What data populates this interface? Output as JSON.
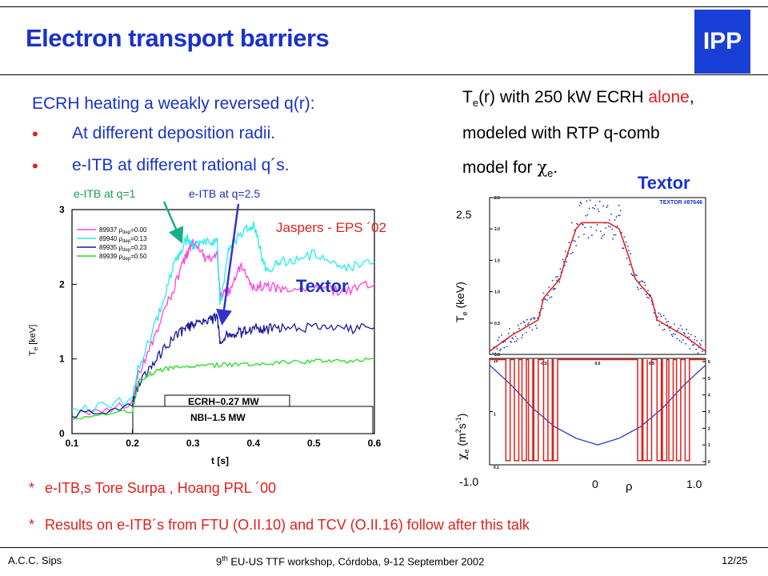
{
  "header": {
    "title": "Electron transport barriers",
    "logo_text": "IPP"
  },
  "left": {
    "lead": "ECRH heating a weakly reversed q(r):",
    "bullets": [
      "At different deposition radii.",
      "e-ITB at different rational q´s."
    ],
    "label_q1": "e-ITB at q=1",
    "label_q25": "e-ITB at q=2.5"
  },
  "right": {
    "line1_pre": "T",
    "line1_sub": "e",
    "line1_mid": "(r) with 250 kW ECRH ",
    "line1_alone": "alone",
    "line1_end": ",",
    "line2": "modeled with RTP q-comb",
    "line3_pre": "model for ",
    "line3_chi": "χ",
    "line3_sub": "e",
    "line3_end": ".",
    "textor_label": "Textor"
  },
  "annotations": {
    "jaspers": "Jaspers - EPS ´02",
    "textor_inset": "Textor"
  },
  "refs": {
    "ref1_star": "*",
    "ref1": "e-ITB,s Tore Surpa , Hoang PRL ´00",
    "ref2_star": "*",
    "ref2": "Results on e-ITB´s from FTU (O.II.10) and TCV (O.II.16) follow after this talk"
  },
  "footer": {
    "left": "A.C.C. Sips",
    "center_pre": "9",
    "center_sup": "th",
    "center_post": " EU-US TTF workshop, Córdoba, 9-12 September 2002",
    "right": "12/25"
  },
  "chart_data": [
    {
      "type": "line",
      "xlabel": "t [s]",
      "ylabel": "Te [keV]",
      "ylabel_main": "T",
      "ylabel_sub": "e",
      "ylabel_unit": " [keV]",
      "xlim": [
        0.1,
        0.6
      ],
      "ylim": [
        0,
        3
      ],
      "xticks": [
        "0.1",
        "0.2",
        "0.3",
        "0.4",
        "0.5",
        "0.6"
      ],
      "yticks": [
        "0",
        "1",
        "2",
        "3"
      ],
      "ecrh_label": "ECRH–0.27 MW",
      "nbi_label": "NBI–1.5 MW",
      "series": [
        {
          "name": "89937 ρdep=0.00",
          "shot": "89937",
          "rho_label": "ρ",
          "rho_sub": "dep",
          "rho_val": "=0.00",
          "color": "#ff44dd",
          "x": [
            0.1,
            0.2,
            0.21,
            0.24,
            0.27,
            0.29,
            0.3,
            0.32,
            0.34,
            0.345,
            0.36,
            0.38,
            0.4,
            0.42,
            0.45,
            0.5,
            0.55,
            0.6
          ],
          "y": [
            0.25,
            0.42,
            0.8,
            1.35,
            2.0,
            2.4,
            2.55,
            2.35,
            2.4,
            1.85,
            1.9,
            2.25,
            1.95,
            2.0,
            1.9,
            1.95,
            1.9,
            2.0
          ]
        },
        {
          "name": "89940 ρdep=0.13",
          "shot": "89940",
          "rho_label": "ρ",
          "rho_sub": "dep",
          "rho_val": "=0.13",
          "color": "#22eeee",
          "x": [
            0.1,
            0.2,
            0.21,
            0.24,
            0.27,
            0.29,
            0.3,
            0.32,
            0.34,
            0.345,
            0.36,
            0.38,
            0.4,
            0.42,
            0.45,
            0.5,
            0.55,
            0.6
          ],
          "y": [
            0.28,
            0.45,
            0.9,
            1.5,
            2.3,
            2.6,
            2.5,
            2.55,
            2.6,
            1.7,
            2.5,
            2.7,
            2.8,
            2.2,
            2.3,
            2.4,
            2.2,
            2.3
          ]
        },
        {
          "name": "89935 ρdep=0.23",
          "shot": "89935",
          "rho_label": "ρ",
          "rho_sub": "dep",
          "rho_val": "=0.23",
          "color": "#1a1a9c",
          "x": [
            0.1,
            0.2,
            0.21,
            0.24,
            0.27,
            0.29,
            0.3,
            0.32,
            0.34,
            0.345,
            0.36,
            0.38,
            0.4,
            0.42,
            0.45,
            0.5,
            0.55,
            0.6
          ],
          "y": [
            0.22,
            0.38,
            0.65,
            1.0,
            1.3,
            1.42,
            1.45,
            1.5,
            1.55,
            1.2,
            1.35,
            1.35,
            1.42,
            1.4,
            1.4,
            1.42,
            1.4,
            1.42
          ]
        },
        {
          "name": "89939 ρdep=0.50",
          "shot": "89939",
          "rho_label": "ρ",
          "rho_sub": "dep",
          "rho_val": "=0.50",
          "color": "#22dd22",
          "x": [
            0.1,
            0.2,
            0.21,
            0.24,
            0.27,
            0.3,
            0.35,
            0.4,
            0.45,
            0.5,
            0.55,
            0.6
          ],
          "y": [
            0.2,
            0.3,
            0.7,
            0.85,
            0.88,
            0.9,
            0.92,
            0.92,
            0.95,
            0.97,
            0.97,
            1.0
          ]
        }
      ]
    },
    {
      "type": "scatter",
      "title": "TEXTOR #87646",
      "ylabel": "Te (keV)",
      "ylabel_main": "T",
      "ylabel_sub": "e",
      "ylabel_unit": " (keV)",
      "ytick_label": "2.5",
      "xlim": [
        -1.0,
        1.0
      ],
      "ylim": [
        0,
        2.5
      ],
      "yticks": [
        "0.0",
        "0.5",
        "1.0",
        "1.5",
        "2.0",
        "2.5"
      ],
      "model_color": "#e0201a",
      "data_color": "#1a32c8",
      "model": {
        "rho": [
          -1.0,
          -0.8,
          -0.55,
          -0.5,
          -0.35,
          -0.3,
          -0.2,
          -0.15,
          0.1,
          0.15,
          0.2,
          0.3,
          0.35,
          0.5,
          0.55,
          0.8,
          1.0
        ],
        "te": [
          0.05,
          0.3,
          0.55,
          0.9,
          1.2,
          1.5,
          2.0,
          2.1,
          2.1,
          2.05,
          2.0,
          1.5,
          1.2,
          0.9,
          0.55,
          0.3,
          0.05
        ]
      },
      "measured_rho_range": [
        -0.97,
        0.97
      ]
    },
    {
      "type": "line",
      "ylabel": "χe (m2s-1)",
      "ylabel_chi": "χ",
      "ylabel_sub": "e",
      "ylabel_unit_open": " (m",
      "ylabel_sup1": "2",
      "ylabel_unit_mid": "s",
      "ylabel_sup2": "-1",
      "ylabel_unit_close": ")",
      "xlabel": "ρ",
      "xtick_labels": [
        "-1.0",
        "0",
        "1.0"
      ],
      "xlim": [
        -1.0,
        1.0
      ],
      "y_log": true,
      "ylim": [
        0.1,
        10
      ],
      "y_left_ticks": [
        "10",
        "1",
        "0.1"
      ],
      "y_right_ticks": [
        "6",
        "5",
        "4",
        "3",
        "2",
        "1",
        "0"
      ],
      "x_top_ticks": [
        "-0.5",
        "0.0",
        "0.5"
      ],
      "chi_color": "#e0201a",
      "q_color": "#1a32c8",
      "chi_dips_rho": [
        -0.83,
        -0.75,
        -0.68,
        -0.62,
        -0.57,
        -0.48,
        -0.44,
        -0.39,
        0.39,
        0.44,
        0.48,
        0.57,
        0.62,
        0.68,
        0.75,
        0.83
      ],
      "q_profile": {
        "rho": [
          -1.0,
          -0.8,
          -0.6,
          -0.4,
          -0.2,
          0.0,
          0.2,
          0.4,
          0.6,
          0.8,
          1.0
        ],
        "q": [
          6.0,
          4.8,
          3.4,
          2.3,
          1.6,
          1.2,
          1.6,
          2.3,
          3.4,
          4.8,
          6.0
        ]
      }
    }
  ]
}
